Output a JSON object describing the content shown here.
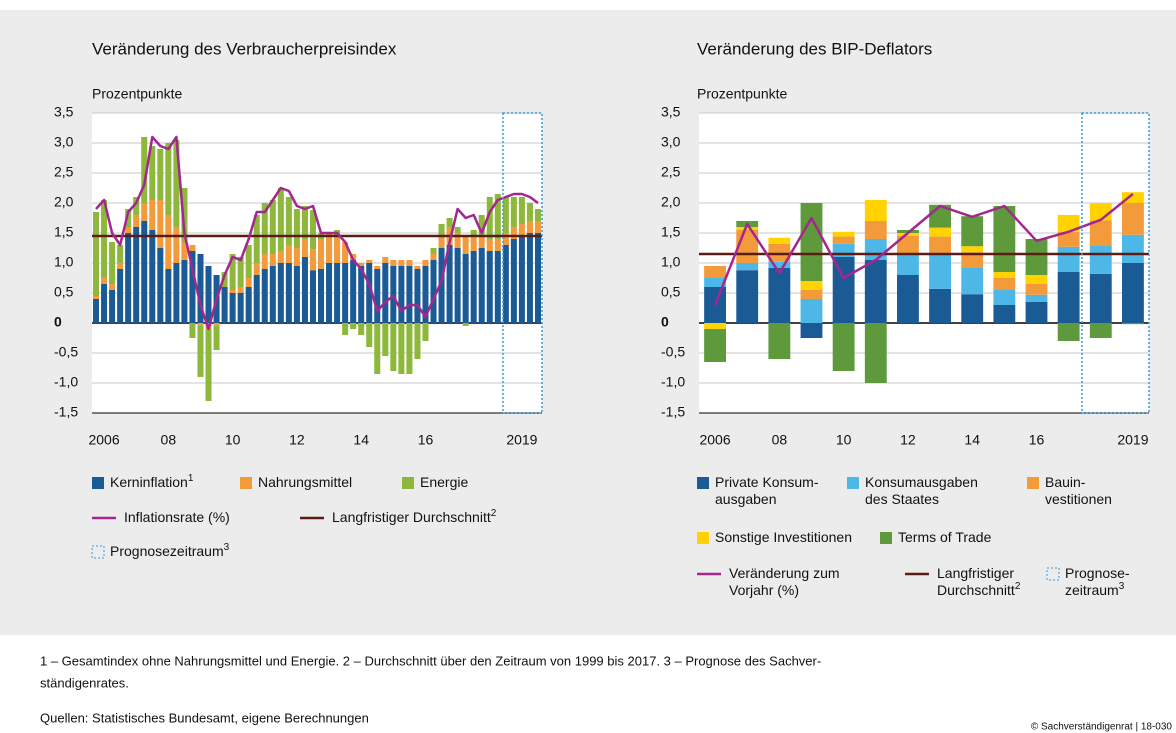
{
  "chart_data": [
    {
      "type": "bar",
      "stacked": true,
      "title": "Veränderung des Verbraucherpreisindex",
      "y_label": "Prozentpunkte",
      "categories": [
        null,
        "2006",
        null,
        null,
        null,
        null,
        null,
        null,
        null,
        "08",
        null,
        null,
        null,
        null,
        null,
        null,
        null,
        "10",
        null,
        null,
        null,
        null,
        null,
        null,
        null,
        "12",
        null,
        null,
        null,
        null,
        null,
        null,
        null,
        "14",
        null,
        null,
        null,
        null,
        null,
        null,
        null,
        "16",
        null,
        null,
        null,
        null,
        null,
        null,
        null,
        null,
        null,
        null,
        null,
        "2019",
        null,
        null
      ],
      "series": [
        {
          "name": "Kerninflation",
          "footnote": "1",
          "color": "#1b5b95",
          "values": [
            0.4,
            0.65,
            0.55,
            0.9,
            1.5,
            1.6,
            1.7,
            1.55,
            1.25,
            0.9,
            1.0,
            1.05,
            1.2,
            1.15,
            0.95,
            0.8,
            0.6,
            0.5,
            0.5,
            0.6,
            0.8,
            0.9,
            0.95,
            1.0,
            1.0,
            0.95,
            1.1,
            0.88,
            0.9,
            1.0,
            1.0,
            1.0,
            1.05,
            0.95,
            1.0,
            0.9,
            1.0,
            0.95,
            0.95,
            0.95,
            0.9,
            0.95,
            1.05,
            1.25,
            1.3,
            1.25,
            1.15,
            1.2,
            1.25,
            1.2,
            1.2,
            1.3,
            1.4,
            1.45,
            1.5,
            1.5
          ]
        },
        {
          "name": "Nahrungsmittel",
          "color": "#f39a3b",
          "values": [
            0.05,
            0.1,
            0.1,
            0.1,
            0.1,
            0.2,
            0.3,
            0.5,
            0.8,
            0.9,
            0.6,
            0.3,
            0.1,
            -0.05,
            -0.1,
            -0.05,
            0.0,
            0.05,
            0.1,
            0.15,
            0.2,
            0.25,
            0.2,
            0.2,
            0.3,
            0.3,
            0.3,
            0.35,
            0.5,
            0.5,
            0.45,
            0.35,
            0.1,
            0.05,
            0.05,
            0.05,
            0.1,
            0.1,
            0.1,
            0.1,
            0.05,
            0.1,
            0.1,
            0.2,
            0.3,
            0.25,
            0.3,
            0.25,
            0.2,
            0.2,
            0.2,
            0.2,
            0.2,
            0.2,
            0.2,
            0.2
          ]
        },
        {
          "name": "Energie",
          "color": "#8db83b",
          "values": [
            1.4,
            1.3,
            0.7,
            0.3,
            0.3,
            0.3,
            1.1,
            0.9,
            0.85,
            1.2,
            1.45,
            0.9,
            -0.25,
            -0.85,
            -1.2,
            -0.4,
            0.25,
            0.6,
            0.5,
            0.55,
            0.8,
            0.85,
            0.9,
            1.05,
            0.8,
            0.65,
            0.55,
            0.65,
            0.1,
            0.0,
            0.1,
            -0.2,
            -0.1,
            -0.2,
            -0.4,
            -0.85,
            -0.55,
            -0.8,
            -0.85,
            -0.85,
            -0.6,
            -0.3,
            0.1,
            0.2,
            0.15,
            0.1,
            -0.05,
            0.1,
            0.35,
            0.7,
            0.75,
            0.6,
            0.5,
            0.45,
            0.3,
            0.2
          ]
        },
        {
          "type": "line",
          "name": "Inflationsrate (%)",
          "color": "#a3278f",
          "values": [
            1.9,
            2.05,
            1.5,
            1.3,
            1.85,
            2.0,
            2.3,
            3.1,
            2.95,
            2.9,
            3.1,
            1.5,
            0.9,
            0.3,
            -0.1,
            0.4,
            0.8,
            1.1,
            1.05,
            1.4,
            1.85,
            1.85,
            2.05,
            2.25,
            2.2,
            1.95,
            1.9,
            1.95,
            1.5,
            1.5,
            1.5,
            1.35,
            1.05,
            0.9,
            0.65,
            0.2,
            0.35,
            0.45,
            0.2,
            0.3,
            0.3,
            0.1,
            0.4,
            0.7,
            1.35,
            1.9,
            1.75,
            1.8,
            1.5,
            1.85,
            2.05,
            2.1,
            2.15,
            2.15,
            2.1,
            2.0
          ]
        }
      ],
      "reference_line": {
        "name": "Langfristiger Durchschnitt",
        "footnote": "2",
        "value": 1.45,
        "color": "#5c1c16"
      },
      "forecast": {
        "name": "Prognosezeitraum",
        "footnote": "3",
        "color": "#3a9ad9"
      },
      "ylim": [
        -1.5,
        3.5
      ],
      "yticks": [
        {
          "value": -1.5,
          "label": "-1,5"
        },
        {
          "value": -1,
          "label": "-1,0"
        },
        {
          "value": -0.5,
          "label": "-0,5"
        },
        0,
        {
          "value": 0.5,
          "label": "0,5"
        },
        {
          "value": 1,
          "label": "1,0"
        },
        {
          "value": 1.5,
          "label": "1,5"
        },
        {
          "value": 2,
          "label": "2,0"
        },
        {
          "value": 2.5,
          "label": "2,5"
        },
        {
          "value": 3,
          "label": "3,0"
        },
        {
          "value": 3.5,
          "label": "3,5"
        }
      ],
      "grid": true
    },
    {
      "type": "bar",
      "stacked": true,
      "title": "Veränderung des BIP-Deflators",
      "y_label": "Prozentpunkte",
      "categories": [
        "2006",
        null,
        "08",
        null,
        "10",
        null,
        "12",
        null,
        "14",
        null,
        "16",
        null,
        null,
        "2019"
      ],
      "series": [
        {
          "name": "Private Konsum-\nausgaben",
          "color": "#1b5b95",
          "values": [
            0.6,
            0.88,
            0.92,
            -0.25,
            1.1,
            1.05,
            0.8,
            0.57,
            0.48,
            0.3,
            0.35,
            0.85,
            0.82,
            1.0
          ]
        },
        {
          "name": "Konsumausgaben\ndes Staates",
          "color": "#4db8e8",
          "values": [
            0.15,
            0.12,
            0.1,
            0.4,
            0.22,
            0.35,
            0.35,
            0.6,
            0.45,
            0.25,
            0.12,
            0.42,
            0.47,
            0.47
          ]
        },
        {
          "name": "Bauin-\nvestitionen",
          "color": "#f39a3b",
          "values": [
            0.2,
            0.55,
            0.3,
            0.15,
            0.12,
            0.3,
            0.3,
            0.27,
            0.25,
            0.2,
            0.18,
            0.25,
            0.42,
            0.53
          ]
        },
        {
          "name": "Sonstige Investitionen",
          "color": "#ffd200",
          "values": [
            -0.1,
            0.05,
            0.1,
            0.15,
            0.08,
            0.35,
            0.05,
            0.15,
            0.1,
            0.1,
            0.15,
            0.28,
            0.28,
            0.18
          ]
        },
        {
          "name": "Terms of Trade",
          "color": "#5e9a3c",
          "values": [
            -0.55,
            0.1,
            -0.6,
            1.3,
            -0.8,
            -1.0,
            0.05,
            0.38,
            0.5,
            1.1,
            0.6,
            -0.3,
            -0.25,
            -0.02
          ]
        },
        {
          "type": "line",
          "name": "Veränderung zum\nVorjahr (%)",
          "color": "#a3278f",
          "values": [
            0.3,
            1.65,
            0.83,
            1.75,
            0.75,
            1.05,
            1.5,
            1.95,
            1.77,
            1.95,
            1.37,
            1.52,
            1.72,
            2.15
          ]
        }
      ],
      "reference_line": {
        "name": "Langfristiger\nDurchschnitt",
        "footnote": "2",
        "value": 1.15,
        "color": "#5c1c16"
      },
      "forecast": {
        "name": "Prognose-\nzeitraum",
        "footnote": "3",
        "color": "#3a9ad9"
      },
      "ylim": [
        -1.5,
        3.5
      ],
      "yticks": [
        {
          "value": -1.5,
          "label": "-1,5"
        },
        {
          "value": -1,
          "label": "-1,0"
        },
        {
          "value": -0.5,
          "label": "-0,5"
        },
        0,
        {
          "value": 0.5,
          "label": "0,5"
        },
        {
          "value": 1,
          "label": "1,0"
        },
        {
          "value": 1.5,
          "label": "1,5"
        },
        {
          "value": 2,
          "label": "2,0"
        },
        {
          "value": 2.5,
          "label": "2,5"
        },
        {
          "value": 3,
          "label": "3,0"
        },
        {
          "value": 3.5,
          "label": "3,5"
        }
      ],
      "grid": true
    }
  ],
  "notes": {
    "footnotes": [
      "1 – Gesamtindex ohne Nahrungsmittel und Energie.  2 – Durchschnitt über den Zeitraum von 1999 bis 2017.  3 – Prognose des Sachver-",
      "ständigenrates."
    ],
    "sources": "Quellen: Statistisches Bundesamt, eigene Berechnungen",
    "copyright": "© Sachverständigenrat | 18-030"
  }
}
